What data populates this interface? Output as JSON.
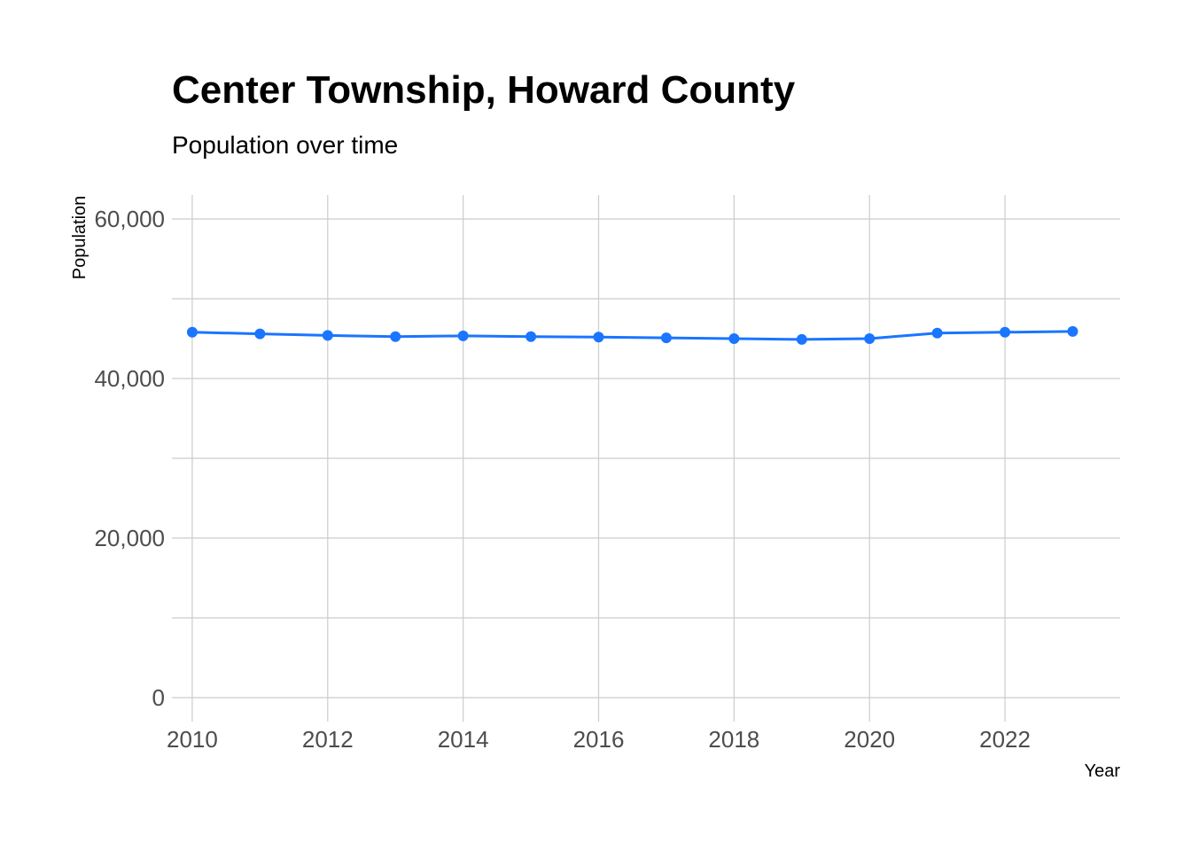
{
  "colors": {
    "series": "#1a75ff",
    "grid": "#cccccc",
    "tick_text": "#4d4d4d"
  },
  "chart_data": {
    "type": "line",
    "title": "Center Township, Howard County",
    "subtitle": "Population over time",
    "xlabel": "Year",
    "ylabel": "Population",
    "x": [
      2010,
      2011,
      2012,
      2013,
      2014,
      2015,
      2016,
      2017,
      2018,
      2019,
      2020,
      2021,
      2022,
      2023
    ],
    "series": [
      {
        "name": "Population",
        "values": [
          45800,
          45600,
          45400,
          45250,
          45350,
          45250,
          45200,
          45100,
          45000,
          44900,
          45000,
          45700,
          45800,
          45900
        ]
      }
    ],
    "xlim": [
      2009.7,
      2023.7
    ],
    "ylim": [
      -3000,
      63000
    ],
    "x_ticks": [
      {
        "value": 2010,
        "label": "2010"
      },
      {
        "value": 2012,
        "label": "2012"
      },
      {
        "value": 2014,
        "label": "2014"
      },
      {
        "value": 2016,
        "label": "2016"
      },
      {
        "value": 2018,
        "label": "2018"
      },
      {
        "value": 2020,
        "label": "2020"
      },
      {
        "value": 2022,
        "label": "2022"
      }
    ],
    "y_ticks": [
      {
        "value": 0,
        "label": "0"
      },
      {
        "value": 20000,
        "label": "20,000"
      },
      {
        "value": 40000,
        "label": "40,000"
      },
      {
        "value": 60000,
        "label": "60,000"
      }
    ],
    "y_minor_grid": [
      10000,
      30000,
      50000
    ],
    "grid": true,
    "legend": "none"
  }
}
